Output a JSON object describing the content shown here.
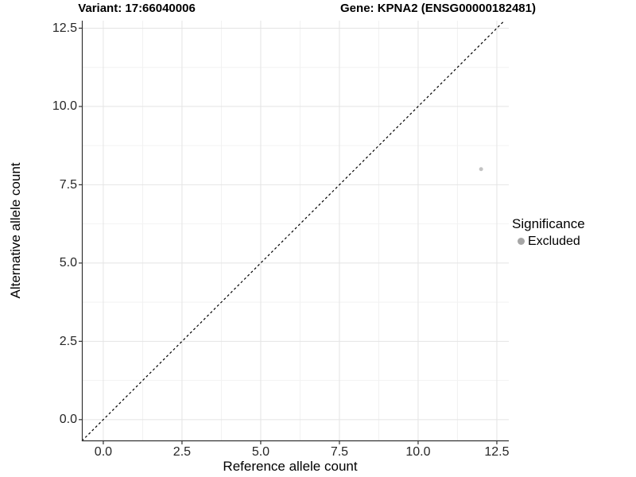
{
  "chart_data": {
    "type": "scatter",
    "title_left": "Variant: 17:66040006",
    "title_right": "Gene: KPNA2 (ENSG00000182481)",
    "xlabel": "Reference allele count",
    "ylabel": "Alternative allele count",
    "x_tick_labels": [
      "0.0",
      "2.5",
      "5.0",
      "7.5",
      "10.0",
      "12.5"
    ],
    "x_tick_values": [
      0,
      2.5,
      5,
      7.5,
      10,
      12.5
    ],
    "y_tick_labels": [
      "0.0",
      "2.5",
      "5.0",
      "7.5",
      "10.0",
      "12.5"
    ],
    "y_tick_values": [
      0,
      2.5,
      5,
      7.5,
      10,
      12.5
    ],
    "minor_ticks_x": [
      1.25,
      3.75,
      6.25,
      8.75,
      11.25
    ],
    "minor_ticks_y": [
      1.25,
      3.75,
      6.25,
      8.75,
      11.25
    ],
    "xlim": [
      -0.68,
      12.88
    ],
    "ylim": [
      -0.69,
      12.74
    ],
    "grid": true,
    "reference_line": {
      "slope": 1,
      "intercept": 0,
      "style": "dashed",
      "color": "#000000"
    },
    "series": [
      {
        "name": "Excluded",
        "color": "#c3c3c3",
        "points": [
          {
            "x": 12,
            "y": 8
          }
        ]
      }
    ],
    "legend": {
      "title": "Significance",
      "position": "right",
      "entries": [
        {
          "label": "Excluded",
          "color": "#a6a6a6"
        }
      ]
    },
    "colors": {
      "grid_major": "#e4e4e4",
      "grid_minor": "#f2f2f2",
      "axis": "#333333",
      "tick_text": "#262626",
      "point_stroke": "#c3c3c3"
    }
  }
}
